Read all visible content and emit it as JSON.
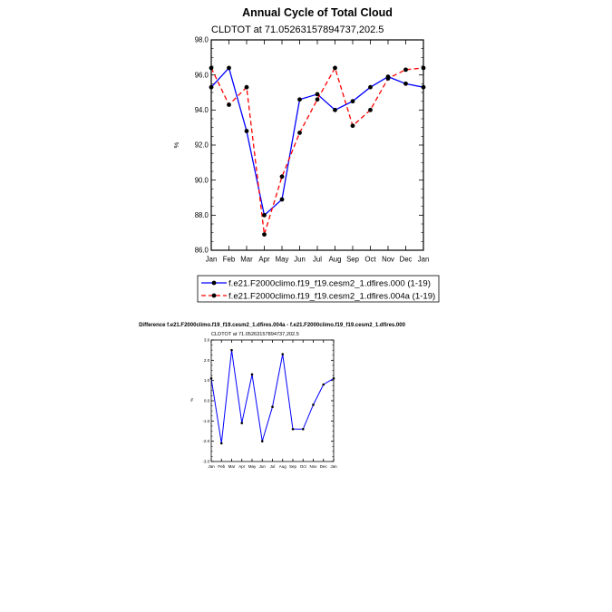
{
  "chart_data": [
    {
      "type": "line",
      "title": "Annual Cycle of Total Cloud",
      "subtitle": "CLDTOT at 71.05263157894737,202.5",
      "ylabel": "%",
      "xlabel": "",
      "ylim": [
        86.0,
        98.0
      ],
      "yticks": [
        "86.0",
        "88.0",
        "90.0",
        "92.0",
        "94.0",
        "96.0",
        "98.0"
      ],
      "categories": [
        "Jan",
        "Feb",
        "Mar",
        "Apr",
        "May",
        "Jun",
        "Jul",
        "Aug",
        "Sep",
        "Oct",
        "Nov",
        "Dec",
        "Jan"
      ],
      "series": [
        {
          "name": "f.e21.F2000climo.f19_f19.cesm2_1.dfires.000 (1-19)",
          "color": "#0000ff",
          "dash": "solid",
          "values": [
            95.3,
            96.4,
            92.8,
            88.0,
            88.9,
            94.6,
            94.9,
            94.0,
            94.5,
            95.3,
            95.9,
            95.5,
            95.3
          ]
        },
        {
          "name": "f.e21.F2000climo.f19_f19.cesm2_1.dfires.004a (1-19)",
          "color": "#ff0000",
          "dash": "dashed",
          "values": [
            96.4,
            94.3,
            95.3,
            86.9,
            90.2,
            92.7,
            94.6,
            96.4,
            93.1,
            94.0,
            95.8,
            96.3,
            96.4
          ]
        }
      ]
    },
    {
      "type": "line",
      "title": "Difference f.e21.F2000climo.f19_f19.cesm2_1.dfires.004a - f.e21.F2000climo.f19_f19.cesm2_1.dfires.000",
      "subtitle": "CLDTOT at 71.05263157894737,202.5",
      "ylabel": "%",
      "xlabel": "",
      "ylim": [
        -3.0,
        3.0
      ],
      "yticks": [
        "-3.0",
        "-2.0",
        "-1.0",
        "0.0",
        "1.0",
        "2.0",
        "3.0"
      ],
      "categories": [
        "Jan",
        "Feb",
        "Mar",
        "Apr",
        "May",
        "Jun",
        "Jul",
        "Aug",
        "Sep",
        "Oct",
        "Nov",
        "Dec",
        "Jan"
      ],
      "series": [
        {
          "color": "#0000ff",
          "dash": "solid",
          "values": [
            1.1,
            -2.1,
            2.5,
            -1.1,
            1.3,
            -2.0,
            -0.3,
            2.3,
            -1.4,
            -1.4,
            -0.2,
            0.8,
            1.1
          ]
        }
      ]
    }
  ]
}
